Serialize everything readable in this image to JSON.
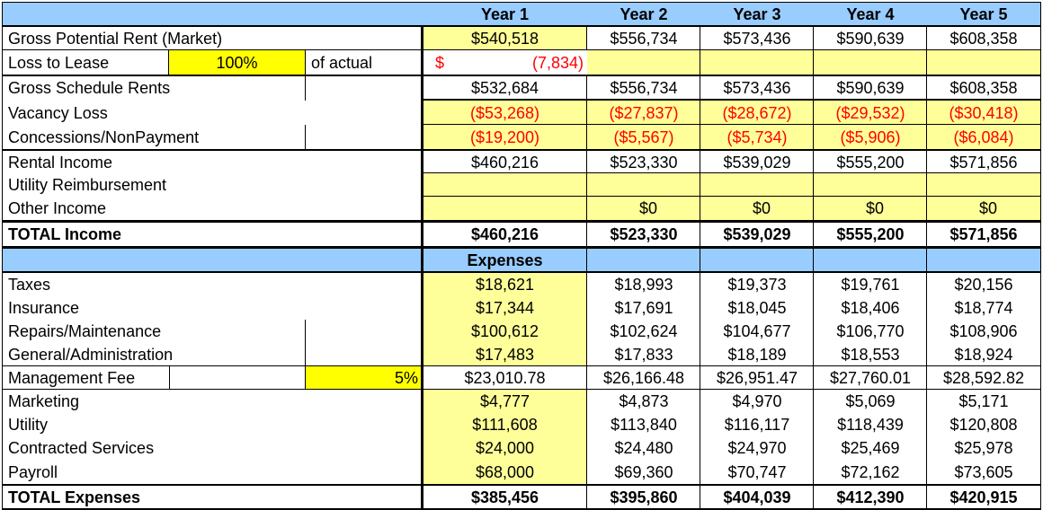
{
  "header": {
    "year_labels": [
      "Year 1",
      "Year 2",
      "Year 3",
      "Year 4",
      "Year 5"
    ]
  },
  "income": {
    "gross_potential_rent": {
      "label": "Gross Potential Rent (Market)",
      "values": [
        "$540,518",
        "$556,734",
        "$573,436",
        "$590,639",
        "$608,358"
      ]
    },
    "loss_to_lease": {
      "label": "Loss to Lease",
      "percent": "100%",
      "note": "of actual",
      "currency": "$",
      "value": "(7,834)"
    },
    "gross_schedule_rents": {
      "label": "Gross Schedule Rents",
      "values": [
        "$532,684",
        "$556,734",
        "$573,436",
        "$590,639",
        "$608,358"
      ]
    },
    "vacancy_loss": {
      "label": "Vacancy Loss",
      "values": [
        "($53,268)",
        "($27,837)",
        "($28,672)",
        "($29,532)",
        "($30,418)"
      ]
    },
    "concessions": {
      "label": "Concessions/NonPayment",
      "values": [
        "($19,200)",
        "($5,567)",
        "($5,734)",
        "($5,906)",
        "($6,084)"
      ]
    },
    "rental_income": {
      "label": "Rental Income",
      "values": [
        "$460,216",
        "$523,330",
        "$539,029",
        "$555,200",
        "$571,856"
      ]
    },
    "utility_reimbursement": {
      "label": "Utility Reimbursement"
    },
    "other_income": {
      "label": "Other Income",
      "values": [
        "",
        "$0",
        "$0",
        "$0",
        "$0"
      ]
    },
    "total_income": {
      "label": "TOTAL Income",
      "values": [
        "$460,216",
        "$523,330",
        "$539,029",
        "$555,200",
        "$571,856"
      ]
    }
  },
  "expenses": {
    "section_title": "Expenses",
    "rows": [
      {
        "label": "Taxes",
        "values": [
          "$18,621",
          "$18,993",
          "$19,373",
          "$19,761",
          "$20,156"
        ]
      },
      {
        "label": "Insurance",
        "values": [
          "$17,344",
          "$17,691",
          "$18,045",
          "$18,406",
          "$18,774"
        ]
      },
      {
        "label": "Repairs/Maintenance",
        "values": [
          "$100,612",
          "$102,624",
          "$104,677",
          "$106,770",
          "$108,906"
        ]
      },
      {
        "label": "General/Administration",
        "values": [
          "$17,483",
          "$17,833",
          "$18,189",
          "$18,553",
          "$18,924"
        ]
      },
      {
        "label": "Management Fee",
        "values": [
          "$23,010.78",
          "$26,166.48",
          "$26,951.47",
          "$27,760.01",
          "$28,592.82"
        ]
      },
      {
        "label": "Marketing",
        "values": [
          "$4,777",
          "$4,873",
          "$4,970",
          "$5,069",
          "$5,171"
        ]
      },
      {
        "label": "Utility",
        "values": [
          "$111,608",
          "$113,840",
          "$116,117",
          "$118,439",
          "$120,808"
        ]
      },
      {
        "label": "Contracted Services",
        "values": [
          "$24,000",
          "$24,480",
          "$24,970",
          "$25,469",
          "$25,978"
        ]
      },
      {
        "label": "Payroll",
        "values": [
          "$68,000",
          "$69,360",
          "$70,747",
          "$72,162",
          "$73,605"
        ]
      }
    ],
    "management_fee_percent": "5%",
    "total": {
      "label": "TOTAL Expenses",
      "values": [
        "$385,456",
        "$395,860",
        "$404,039",
        "$412,390",
        "$420,915"
      ]
    }
  },
  "colors": {
    "header_blue": "#99ccff",
    "input_yellow": "#ffff99",
    "highlight_yellow": "#ffff00",
    "negative_red": "#ff0000"
  }
}
